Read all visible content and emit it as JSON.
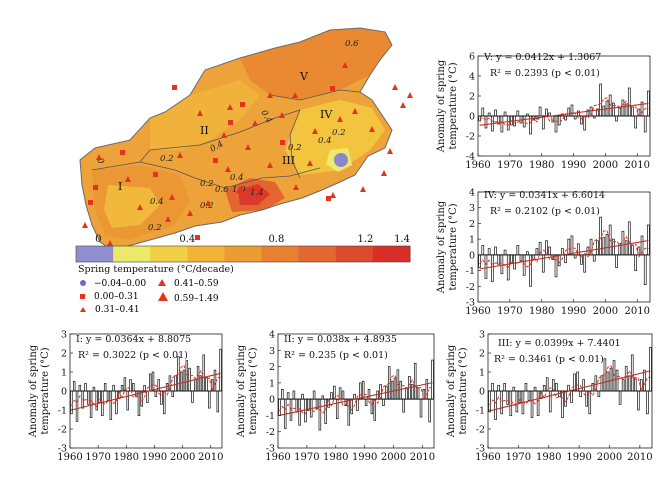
{
  "map": {
    "regions": [
      "V",
      "II",
      "IV",
      "III",
      "I"
    ],
    "isolines": [
      "0.6",
      "0.4",
      "0.4",
      "0",
      "0.2",
      "0.4",
      "0.2",
      "0.6",
      "1.0",
      "1.4",
      "0.2",
      "0.4",
      "0.2",
      "0.4",
      "0.2",
      "0.2"
    ],
    "colorbar": {
      "ticks": [
        "0",
        "0.4",
        "0.8",
        "1.2",
        "1.4"
      ],
      "tick_values": [
        0,
        0.4,
        0.8,
        1.2,
        1.4
      ],
      "range": [
        -0.1,
        1.4
      ],
      "colors": [
        "#8f8fd0",
        "#ece86a",
        "#f3cf45",
        "#f2b437",
        "#eb9d32",
        "#e78131",
        "#e26731",
        "#dc4a2f",
        "#d83029"
      ]
    },
    "legend_title": "Spring temperature (°C/decade)",
    "legend": [
      {
        "label": "−0.04–0.00",
        "symbol": "circle",
        "color": "#6a6ac8"
      },
      {
        "label": "0.41–0.59",
        "symbol": "triangle-small",
        "color": "#e3331f"
      },
      {
        "label": "0.00–0.31",
        "symbol": "square",
        "color": "#e3331f"
      },
      {
        "label": "0.59–1.49",
        "symbol": "triangle-large",
        "color": "#e3331f"
      },
      {
        "label": "0.31–0.41",
        "symbol": "triangle-tiny",
        "color": "#e3331f"
      }
    ]
  },
  "chart_data": [
    {
      "type": "bar",
      "region": "V",
      "equation": "V: y = 0.0412x + 1.3067",
      "r2": "R² = 0.2393 (p < 0.01)",
      "ylabel": "Anomaly of spring temperature (°C)",
      "xlim": [
        1960,
        2014
      ],
      "ylim": [
        -4,
        6
      ],
      "yticks": [
        -4,
        -2,
        0,
        2,
        4,
        6
      ],
      "xticks": [
        1960,
        1970,
        1980,
        1990,
        2000,
        2010
      ],
      "trend": {
        "slope": 0.0412,
        "intercept": -0.93
      },
      "x": [
        1960,
        1961,
        1962,
        1963,
        1964,
        1965,
        1966,
        1967,
        1968,
        1969,
        1970,
        1971,
        1972,
        1973,
        1974,
        1975,
        1976,
        1977,
        1978,
        1979,
        1980,
        1981,
        1982,
        1983,
        1984,
        1985,
        1986,
        1987,
        1988,
        1989,
        1990,
        1991,
        1992,
        1993,
        1994,
        1995,
        1996,
        1997,
        1998,
        1999,
        2000,
        2001,
        2002,
        2003,
        2004,
        2005,
        2006,
        2007,
        2008,
        2009,
        2010,
        2011,
        2012,
        2013
      ],
      "values": [
        -0.5,
        0.8,
        -1.2,
        0.3,
        -1.5,
        0.6,
        -0.8,
        -1.6,
        0.4,
        -1.4,
        -0.9,
        -1.0,
        0.5,
        -0.7,
        -1.1,
        0.2,
        -1.8,
        -0.4,
        -0.3,
        0.9,
        -1.3,
        0.7,
        0.3,
        -0.6,
        -1.6,
        -0.9,
        0.2,
        -0.4,
        0.8,
        1.1,
        -0.3,
        0.5,
        -0.8,
        -1.4,
        0.6,
        0.9,
        -0.2,
        0.7,
        3.2,
        1.0,
        1.5,
        2.1,
        1.3,
        -0.5,
        0.8,
        1.6,
        1.2,
        2.8,
        0.9,
        -1.2,
        0.7,
        1.4,
        -1.6,
        2.5
      ]
    },
    {
      "type": "bar",
      "region": "IV",
      "equation": "IV: y = 0.0341x + 6.6014",
      "r2": "R² = 0.2102 (p < 0.01)",
      "ylabel": "Anomaly of spring temperature (°C)",
      "xlim": [
        1960,
        2014
      ],
      "ylim": [
        -3,
        4
      ],
      "yticks": [
        -3,
        -2,
        -1,
        0,
        1,
        2,
        3,
        4
      ],
      "xticks": [
        1960,
        1970,
        1980,
        1990,
        2000,
        2010
      ],
      "trend": {
        "slope": 0.0341,
        "intercept": -0.9
      },
      "x": [
        1960,
        1961,
        1962,
        1963,
        1964,
        1965,
        1966,
        1967,
        1968,
        1969,
        1970,
        1971,
        1972,
        1973,
        1974,
        1975,
        1976,
        1977,
        1978,
        1979,
        1980,
        1981,
        1982,
        1983,
        1984,
        1985,
        1986,
        1987,
        1988,
        1989,
        1990,
        1991,
        1992,
        1993,
        1994,
        1995,
        1996,
        1997,
        1998,
        1999,
        2000,
        2001,
        2002,
        2003,
        2004,
        2005,
        2006,
        2007,
        2008,
        2009,
        2010,
        2011,
        2012,
        2013
      ],
      "values": [
        -0.8,
        0.6,
        -1.5,
        0.4,
        -1.7,
        0.5,
        -0.6,
        -1.2,
        0.3,
        -1.6,
        -0.5,
        -0.9,
        0.6,
        -0.4,
        -1.3,
        0.2,
        -2.0,
        -0.3,
        0.4,
        0.8,
        -1.1,
        0.9,
        0.5,
        -0.3,
        -1.4,
        -0.7,
        0.4,
        -0.5,
        1.0,
        1.2,
        -0.2,
        0.7,
        -0.6,
        -1.1,
        0.5,
        1.0,
        -0.4,
        0.9,
        2.4,
        1.1,
        1.3,
        1.9,
        1.0,
        -0.8,
        0.7,
        1.5,
        0.9,
        2.1,
        0.6,
        -1.0,
        0.5,
        1.2,
        -1.9,
        1.9
      ]
    },
    {
      "type": "bar",
      "region": "I",
      "equation": "I: y = 0.0364x + 8.8075",
      "r2": "R² = 0.3022 (p < 0.01)",
      "ylabel": "Anomaly of spring temperature (°C)",
      "xlim": [
        1960,
        2014
      ],
      "ylim": [
        -3,
        3
      ],
      "yticks": [
        -3,
        -2,
        -1,
        0,
        1,
        2,
        3
      ],
      "xticks": [
        1960,
        1970,
        1980,
        1990,
        2000,
        2010
      ],
      "trend": {
        "slope": 0.0364,
        "intercept": -1.0
      },
      "x": [
        1960,
        1961,
        1962,
        1963,
        1964,
        1965,
        1966,
        1967,
        1968,
        1969,
        1970,
        1971,
        1972,
        1973,
        1974,
        1975,
        1976,
        1977,
        1978,
        1979,
        1980,
        1981,
        1982,
        1983,
        1984,
        1985,
        1986,
        1987,
        1988,
        1989,
        1990,
        1991,
        1992,
        1993,
        1994,
        1995,
        1996,
        1997,
        1998,
        1999,
        2000,
        2001,
        2002,
        2003,
        2004,
        2005,
        2006,
        2007,
        2008,
        2009,
        2010,
        2011,
        2012,
        2013
      ],
      "values": [
        -1.2,
        0.5,
        -1.6,
        0.3,
        -0.9,
        0.4,
        -0.7,
        -1.4,
        0.2,
        -1.0,
        -0.6,
        -1.3,
        0.4,
        -0.5,
        -1.5,
        0.3,
        -1.2,
        -0.4,
        0.3,
        0.7,
        -1.0,
        0.6,
        0.4,
        -0.3,
        -1.3,
        -0.8,
        0.3,
        -0.6,
        0.9,
        1.0,
        -0.3,
        0.6,
        -0.7,
        -1.2,
        0.4,
        0.8,
        -0.3,
        0.8,
        1.8,
        1.0,
        1.1,
        1.6,
        1.2,
        -0.6,
        0.6,
        1.3,
        0.8,
        1.9,
        0.7,
        -0.9,
        0.6,
        1.1,
        -1.1,
        2.2
      ]
    },
    {
      "type": "bar",
      "region": "II",
      "equation": "II: y = 0.038x + 4.8935",
      "r2": "R² = 0.235 (p < 0.01)",
      "ylabel": "Anomaly of spring temperature (°C)",
      "xlim": [
        1960,
        2014
      ],
      "ylim": [
        -3,
        4
      ],
      "yticks": [
        -3,
        -2,
        -1,
        0,
        1,
        2,
        3,
        4
      ],
      "xticks": [
        1960,
        1970,
        1980,
        1990,
        2000,
        2010
      ],
      "trend": {
        "slope": 0.038,
        "intercept": -1.0
      },
      "x": [
        1960,
        1961,
        1962,
        1963,
        1964,
        1965,
        1966,
        1967,
        1968,
        1969,
        1970,
        1971,
        1972,
        1973,
        1974,
        1975,
        1976,
        1977,
        1978,
        1979,
        1980,
        1981,
        1982,
        1983,
        1984,
        1985,
        1986,
        1987,
        1988,
        1989,
        1990,
        1991,
        1992,
        1993,
        1994,
        1995,
        1996,
        1997,
        1998,
        1999,
        2000,
        2001,
        2002,
        2003,
        2004,
        2005,
        2006,
        2007,
        2008,
        2009,
        2010,
        2011,
        2012,
        2013
      ],
      "values": [
        -1.0,
        0.6,
        -1.8,
        0.4,
        -1.3,
        0.5,
        -0.8,
        -1.6,
        0.3,
        -1.4,
        -0.7,
        -1.1,
        0.5,
        -0.6,
        -1.9,
        0.2,
        -1.5,
        -0.5,
        0.4,
        0.8,
        -1.2,
        0.7,
        0.5,
        -0.4,
        -1.6,
        -0.9,
        0.3,
        -0.7,
        1.0,
        1.1,
        -0.4,
        0.6,
        -0.9,
        -1.3,
        0.5,
        0.9,
        -0.4,
        0.8,
        2.0,
        1.1,
        1.3,
        1.8,
        1.1,
        -0.8,
        0.7,
        1.4,
        0.9,
        2.2,
        0.7,
        -1.1,
        0.6,
        1.2,
        -1.4,
        2.4
      ]
    },
    {
      "type": "bar",
      "region": "III",
      "equation": "III: y = 0.0399x + 7.4401",
      "r2": "R² = 0.3461 (p < 0.01)",
      "ylabel": "Anomaly of spring temperature (°C)",
      "xlim": [
        1960,
        2014
      ],
      "ylim": [
        -3,
        3
      ],
      "yticks": [
        -3,
        -2,
        -1,
        0,
        1,
        2,
        3
      ],
      "xticks": [
        1960,
        1970,
        1980,
        1990,
        2000,
        2010
      ],
      "trend": {
        "slope": 0.0399,
        "intercept": -1.05
      },
      "x": [
        1960,
        1961,
        1962,
        1963,
        1964,
        1965,
        1966,
        1967,
        1968,
        1969,
        1970,
        1971,
        1972,
        1973,
        1974,
        1975,
        1976,
        1977,
        1978,
        1979,
        1980,
        1981,
        1982,
        1983,
        1984,
        1985,
        1986,
        1987,
        1988,
        1989,
        1990,
        1991,
        1992,
        1993,
        1994,
        1995,
        1996,
        1997,
        1998,
        1999,
        2000,
        2001,
        2002,
        2003,
        2004,
        2005,
        2006,
        2007,
        2008,
        2009,
        2010,
        2011,
        2012,
        2013
      ],
      "values": [
        -1.1,
        0.4,
        -1.5,
        0.3,
        -1.2,
        0.4,
        -0.7,
        -1.3,
        0.2,
        -1.1,
        -0.6,
        -1.2,
        0.4,
        -0.5,
        -1.4,
        0.2,
        -1.3,
        -0.4,
        0.3,
        0.7,
        -1.1,
        0.6,
        0.4,
        -0.3,
        -1.4,
        -0.8,
        0.3,
        -0.6,
        0.9,
        1.0,
        -0.3,
        0.6,
        -0.8,
        -1.2,
        0.4,
        0.8,
        -0.3,
        0.8,
        1.7,
        1.0,
        1.2,
        1.6,
        1.1,
        -0.7,
        0.6,
        1.3,
        0.8,
        1.9,
        0.7,
        -1.0,
        0.6,
        1.1,
        -1.2,
        2.3
      ]
    }
  ]
}
